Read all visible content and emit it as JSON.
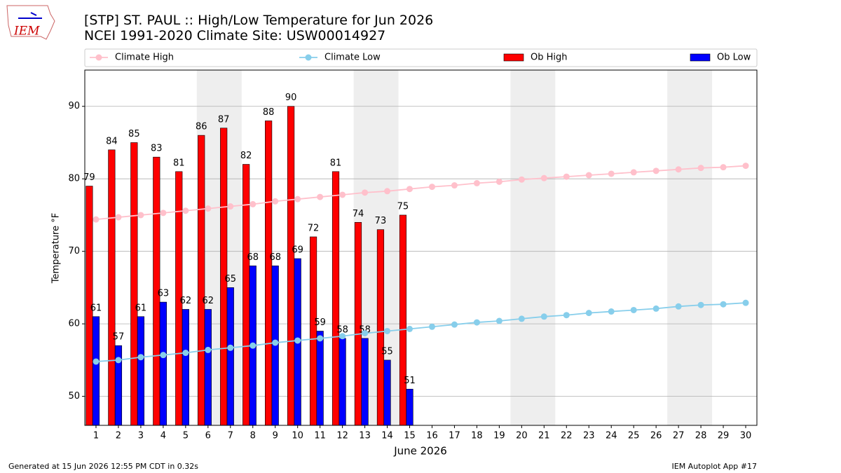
{
  "logo_text": "IEM",
  "footer_left": "Generated at 15 Jun 2026 12:55 PM CDT in 0.32s",
  "footer_right": "IEM Autoplot App #17",
  "chart_data": {
    "type": "bar",
    "title": "[STP] ST. PAUL :: High/Low Temperature for Jun 2026",
    "subtitle": "NCEI 1991-2020 Climate Site: USW00014927",
    "xlabel": "June 2026",
    "ylabel": "Temperature °F",
    "x": [
      1,
      2,
      3,
      4,
      5,
      6,
      7,
      8,
      9,
      10,
      11,
      12,
      13,
      14,
      15,
      16,
      17,
      18,
      19,
      20,
      21,
      22,
      23,
      24,
      25,
      26,
      27,
      28,
      29,
      30
    ],
    "xlim": [
      0.5,
      30.5
    ],
    "ylim": [
      46,
      95
    ],
    "yticks": [
      50,
      60,
      70,
      80,
      90
    ],
    "grid": true,
    "shaded_ranges": [
      [
        5.5,
        7.5
      ],
      [
        12.5,
        14.5
      ],
      [
        19.5,
        21.5
      ],
      [
        26.5,
        28.5
      ]
    ],
    "shade_color": "#eeeeee",
    "series": [
      {
        "name": "Climate High",
        "kind": "line",
        "color": "pink",
        "values": [
          74.4,
          74.7,
          75.0,
          75.3,
          75.6,
          75.9,
          76.2,
          76.5,
          76.9,
          77.2,
          77.5,
          77.8,
          78.1,
          78.3,
          78.6,
          78.9,
          79.1,
          79.4,
          79.6,
          79.9,
          80.1,
          80.3,
          80.5,
          80.7,
          80.9,
          81.1,
          81.3,
          81.5,
          81.6,
          81.8
        ]
      },
      {
        "name": "Climate Low",
        "kind": "line",
        "color": "skyblue",
        "values": [
          54.8,
          55.0,
          55.4,
          55.7,
          56.0,
          56.4,
          56.7,
          57.0,
          57.4,
          57.7,
          58.0,
          58.3,
          58.7,
          59.0,
          59.3,
          59.6,
          59.9,
          60.2,
          60.4,
          60.7,
          61.0,
          61.2,
          61.5,
          61.7,
          61.9,
          62.1,
          62.4,
          62.6,
          62.7,
          62.9
        ]
      },
      {
        "name": "Ob High",
        "kind": "bar",
        "color": "#ff0000",
        "values": [
          79,
          84,
          85,
          83,
          81,
          86,
          87,
          82,
          88,
          90,
          72,
          81,
          74,
          73,
          75,
          null,
          null,
          null,
          null,
          null,
          null,
          null,
          null,
          null,
          null,
          null,
          null,
          null,
          null,
          null
        ]
      },
      {
        "name": "Ob Low",
        "kind": "bar",
        "color": "#0000ff",
        "values": [
          61,
          57,
          61,
          63,
          62,
          62,
          65,
          68,
          68,
          69,
          59,
          58,
          58,
          55,
          51,
          null,
          null,
          null,
          null,
          null,
          null,
          null,
          null,
          null,
          null,
          null,
          null,
          null,
          null,
          null
        ]
      }
    ]
  }
}
